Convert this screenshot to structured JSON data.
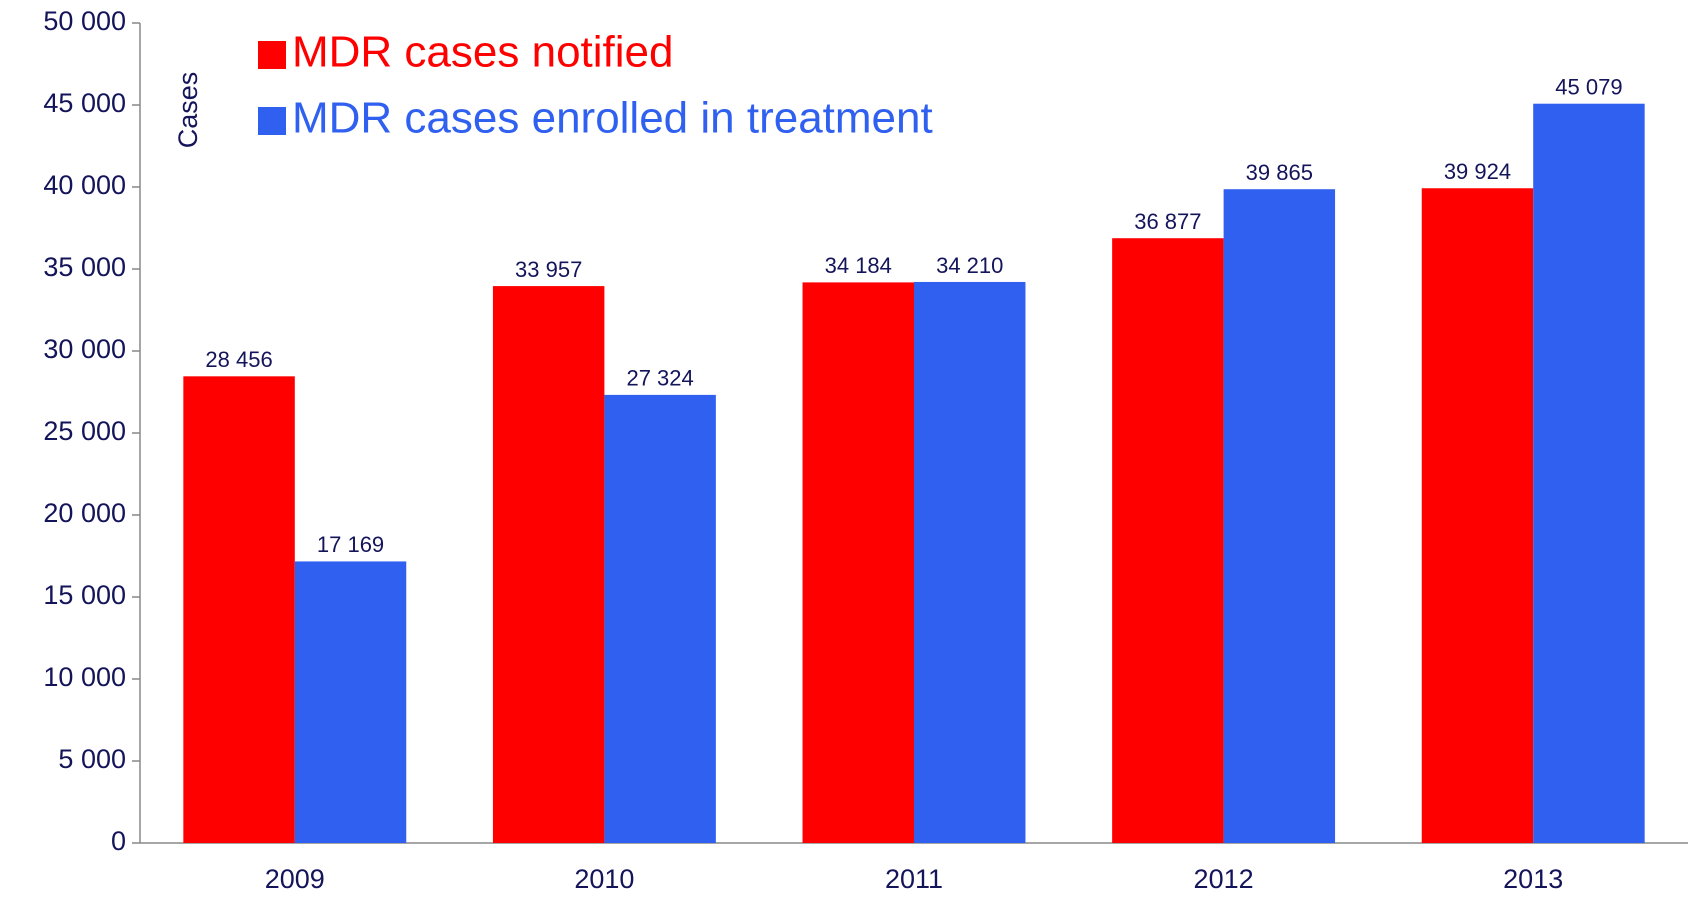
{
  "chart_data": {
    "type": "bar",
    "y_label": "Cases",
    "categories": [
      "2009",
      "2010",
      "2011",
      "2012",
      "2013"
    ],
    "series": [
      {
        "name": "MDR cases notified",
        "color": "#ff0000",
        "values": [
          28456,
          33957,
          34184,
          36877,
          39924
        ],
        "value_labels": [
          "28 456",
          "33 957",
          "34 184",
          "36 877",
          "39 924"
        ]
      },
      {
        "name": "MDR cases enrolled in treatment",
        "color": "#3060ef",
        "values": [
          17169,
          27324,
          34210,
          39865,
          45079
        ],
        "value_labels": [
          "17 169",
          "27 324",
          "34 210",
          "39 865",
          "45 079"
        ]
      }
    ],
    "ylim": [
      0,
      50000
    ],
    "yticks": [
      {
        "value": 0,
        "label": "0"
      },
      {
        "value": 5000,
        "label": "5 000"
      },
      {
        "value": 10000,
        "label": "10 000"
      },
      {
        "value": 15000,
        "label": "15 000"
      },
      {
        "value": 20000,
        "label": "20 000"
      },
      {
        "value": 25000,
        "label": "25 000"
      },
      {
        "value": 30000,
        "label": "30 000"
      },
      {
        "value": 35000,
        "label": "35 000"
      },
      {
        "value": 40000,
        "label": "40 000"
      },
      {
        "value": 45000,
        "label": "45 000"
      },
      {
        "value": 50000,
        "label": "50 000"
      }
    ],
    "grid": false,
    "legend": "top-left"
  }
}
